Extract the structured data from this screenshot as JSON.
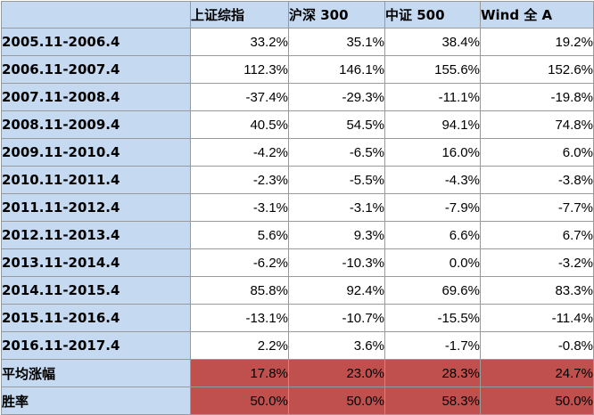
{
  "table": {
    "columns": [
      "上证综指",
      "沪深 300",
      "中证 500",
      "Wind 全 A"
    ],
    "rows": [
      {
        "label": "2005.11-2006.4",
        "values": [
          "33.2%",
          "35.1%",
          "38.4%",
          "19.2%"
        ]
      },
      {
        "label": "2006.11-2007.4",
        "values": [
          "112.3%",
          "146.1%",
          "155.6%",
          "152.6%"
        ]
      },
      {
        "label": "2007.11-2008.4",
        "values": [
          "-37.4%",
          "-29.3%",
          "-11.1%",
          "-19.8%"
        ]
      },
      {
        "label": "2008.11-2009.4",
        "values": [
          "40.5%",
          "54.5%",
          "94.1%",
          "74.8%"
        ]
      },
      {
        "label": "2009.11-2010.4",
        "values": [
          "-4.2%",
          "-6.5%",
          "16.0%",
          "6.0%"
        ]
      },
      {
        "label": "2010.11-2011.4",
        "values": [
          "-2.3%",
          "-5.5%",
          "-4.3%",
          "-3.8%"
        ]
      },
      {
        "label": "2011.11-2012.4",
        "values": [
          "-3.1%",
          "-3.1%",
          "-7.9%",
          "-7.7%"
        ]
      },
      {
        "label": "2012.11-2013.4",
        "values": [
          "5.6%",
          "9.3%",
          "6.6%",
          "6.7%"
        ]
      },
      {
        "label": "2013.11-2014.4",
        "values": [
          "-6.2%",
          "-10.3%",
          "0.0%",
          "-3.2%"
        ]
      },
      {
        "label": "2014.11-2015.4",
        "values": [
          "85.8%",
          "92.4%",
          "69.6%",
          "83.3%"
        ]
      },
      {
        "label": "2015.11-2016.4",
        "values": [
          "-13.1%",
          "-10.7%",
          "-15.5%",
          "-11.4%"
        ]
      },
      {
        "label": "2016.11-2017.4",
        "values": [
          "2.2%",
          "3.6%",
          "-1.7%",
          "-0.8%"
        ]
      }
    ],
    "summary": [
      {
        "label": "平均涨幅",
        "values": [
          "17.8%",
          "23.0%",
          "28.3%",
          "24.7%"
        ]
      },
      {
        "label": "胜率",
        "values": [
          "50.0%",
          "50.0%",
          "58.3%",
          "50.0%"
        ]
      }
    ]
  },
  "colors": {
    "header_fill": "#c5d9f1",
    "summary_fill": "#c0504d",
    "grid_line": "#9a9a9a"
  }
}
